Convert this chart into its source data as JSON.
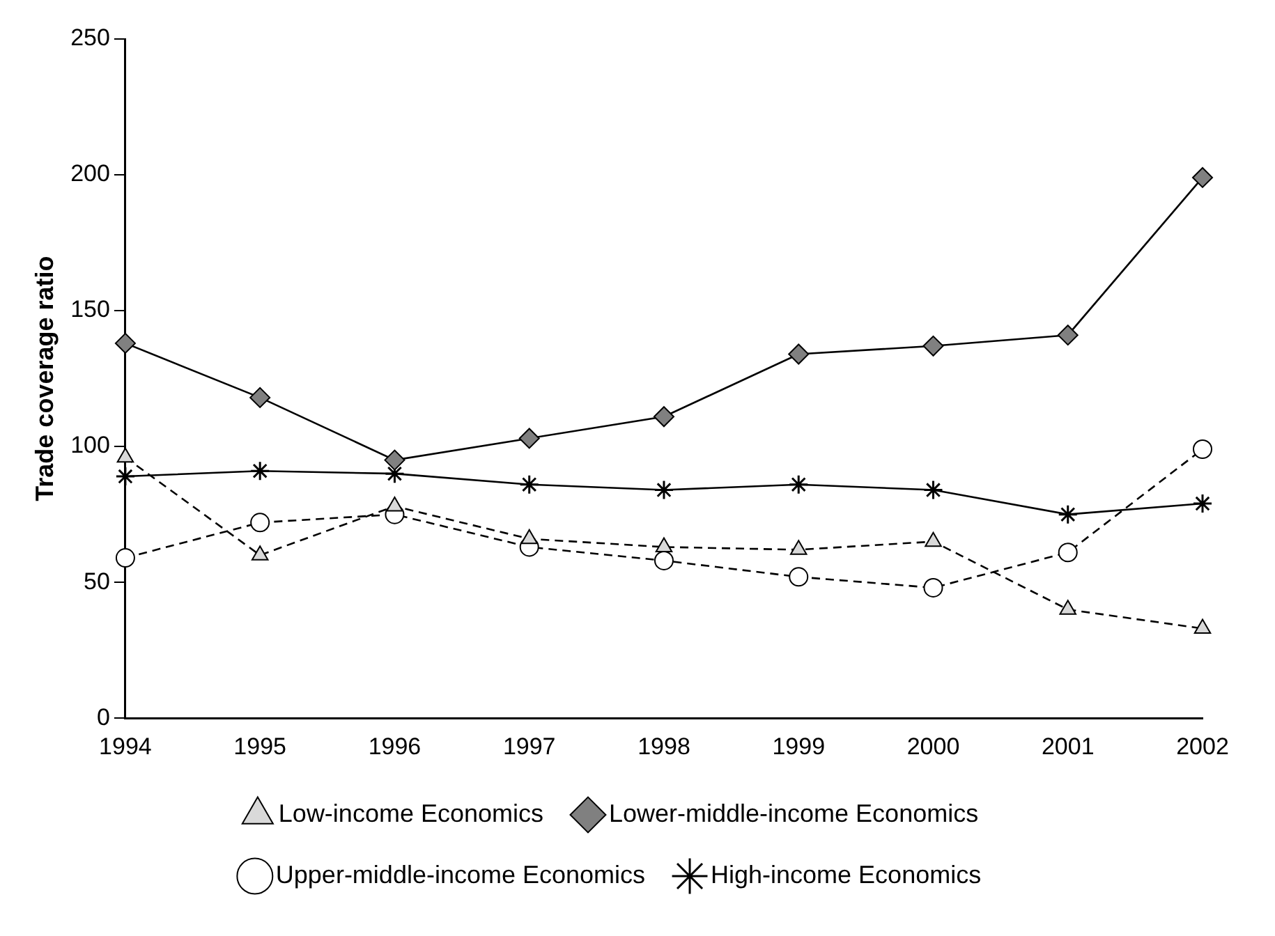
{
  "chart_data": {
    "type": "line",
    "ylabel": "Trade coverage ratio",
    "categories": [
      "1994",
      "1995",
      "1996",
      "1997",
      "1998",
      "1999",
      "2000",
      "2001",
      "2002"
    ],
    "series": [
      {
        "name": "Low-income Economics",
        "color": "#d9d9d9",
        "marker": "triangle",
        "line_style": "dashed",
        "values": [
          96,
          60,
          78,
          66,
          63,
          62,
          65,
          40,
          33
        ]
      },
      {
        "name": "Lower-middle-income Economics",
        "color": "#808080",
        "marker": "diamond",
        "line_style": "solid",
        "values": [
          138,
          118,
          95,
          103,
          111,
          134,
          137,
          141,
          199
        ]
      },
      {
        "name": "Upper-middle-income Economics",
        "color": "#ffffff",
        "marker": "circle",
        "line_style": "dashed",
        "values": [
          59,
          72,
          75,
          63,
          58,
          52,
          48,
          61,
          99
        ]
      },
      {
        "name": "High-income Economics",
        "color": "#000000",
        "marker": "cross",
        "line_style": "solid",
        "values": [
          89,
          91,
          90,
          86,
          84,
          86,
          84,
          75,
          79
        ]
      }
    ],
    "ylim": [
      0,
      250
    ],
    "yticks": [
      0,
      50,
      100,
      150,
      200,
      250
    ],
    "grid": false,
    "legend": "bottom"
  }
}
